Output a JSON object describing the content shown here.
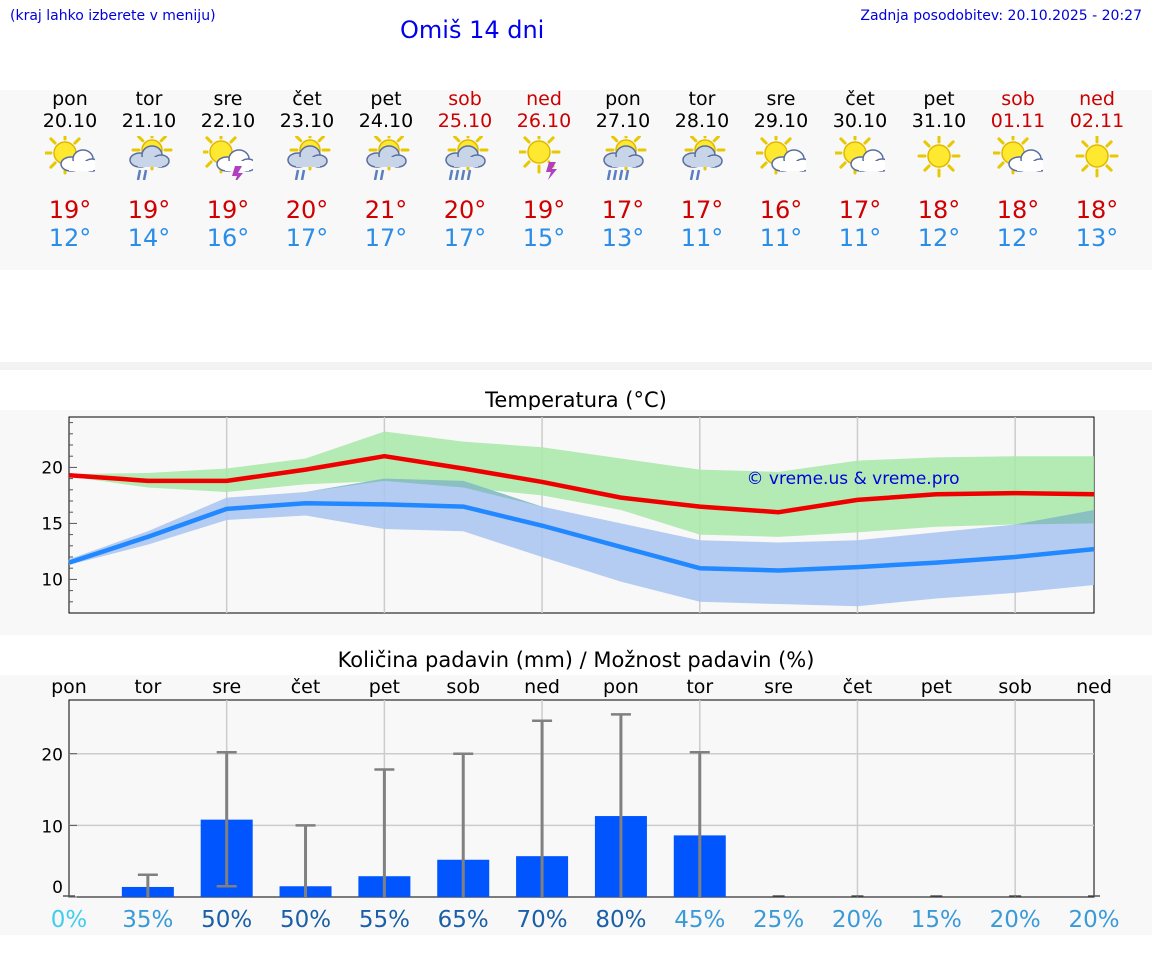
{
  "header": {
    "note": "(kraj lahko izberete v meniju)",
    "title": "Omiš 14 dni",
    "updated": "Zadnja posodobitev: 20.10.2025 - 20:27"
  },
  "days": [
    {
      "name": "pon",
      "date": "20.10",
      "icon": "partly-cloudy-icon",
      "max": "19°",
      "min": "12°",
      "weekend": false
    },
    {
      "name": "tor",
      "date": "21.10",
      "icon": "rain-icon",
      "max": "19°",
      "min": "14°",
      "weekend": false
    },
    {
      "name": "sre",
      "date": "22.10",
      "icon": "thunderstorm-icon",
      "max": "19°",
      "min": "16°",
      "weekend": false
    },
    {
      "name": "čet",
      "date": "23.10",
      "icon": "rain-icon",
      "max": "20°",
      "min": "17°",
      "weekend": false
    },
    {
      "name": "pet",
      "date": "24.10",
      "icon": "rain-icon",
      "max": "21°",
      "min": "17°",
      "weekend": false
    },
    {
      "name": "sob",
      "date": "25.10",
      "icon": "heavy-rain-icon",
      "max": "20°",
      "min": "17°",
      "weekend": true
    },
    {
      "name": "ned",
      "date": "26.10",
      "icon": "sun-thunder-icon",
      "max": "19°",
      "min": "15°",
      "weekend": true
    },
    {
      "name": "pon",
      "date": "27.10",
      "icon": "heavy-rain-icon",
      "max": "17°",
      "min": "13°",
      "weekend": false
    },
    {
      "name": "tor",
      "date": "28.10",
      "icon": "rain-icon",
      "max": "17°",
      "min": "11°",
      "weekend": false
    },
    {
      "name": "sre",
      "date": "29.10",
      "icon": "partly-cloudy-icon",
      "max": "16°",
      "min": "11°",
      "weekend": false
    },
    {
      "name": "čet",
      "date": "30.10",
      "icon": "partly-cloudy-icon",
      "max": "17°",
      "min": "11°",
      "weekend": false
    },
    {
      "name": "pet",
      "date": "31.10",
      "icon": "sunny-icon",
      "max": "18°",
      "min": "12°",
      "weekend": false
    },
    {
      "name": "sob",
      "date": "01.11",
      "icon": "partly-cloudy-icon",
      "max": "18°",
      "min": "12°",
      "weekend": true
    },
    {
      "name": "ned",
      "date": "02.11",
      "icon": "sunny-icon",
      "max": "18°",
      "min": "13°",
      "weekend": true
    }
  ],
  "chart_data": [
    {
      "type": "line",
      "title": "Temperatura (°C)",
      "watermark": "© vreme.us & vreme.pro",
      "x": [
        0,
        1,
        2,
        3,
        4,
        5,
        6,
        7,
        8,
        9,
        10,
        11,
        12,
        13
      ],
      "ylim": [
        7,
        24.5
      ],
      "yticks": [
        10,
        15,
        20
      ],
      "series": [
        {
          "name": "max",
          "color": "#ee0000",
          "values": [
            19.3,
            18.8,
            18.8,
            19.8,
            21.0,
            19.9,
            18.7,
            17.3,
            16.5,
            16.0,
            17.1,
            17.6,
            17.7,
            17.6
          ]
        },
        {
          "name": "min",
          "color": "#2288ff",
          "values": [
            11.5,
            13.8,
            16.3,
            16.8,
            16.7,
            16.5,
            14.8,
            12.9,
            11.0,
            10.8,
            11.1,
            11.5,
            12.0,
            12.7
          ]
        }
      ],
      "bands": [
        {
          "name": "max-range",
          "color": "#a8e8a8",
          "upper": [
            19.4,
            19.5,
            19.9,
            20.8,
            23.2,
            22.3,
            21.8,
            20.8,
            19.8,
            19.6,
            20.6,
            20.9,
            21.0,
            21.0
          ],
          "lower": [
            19.2,
            18.2,
            17.8,
            18.5,
            18.8,
            18.2,
            17.5,
            16.2,
            14.0,
            13.8,
            14.2,
            14.7,
            14.9,
            15.0
          ]
        },
        {
          "name": "min-range",
          "color": "#a8c4f0",
          "upper": [
            11.8,
            14.3,
            17.3,
            17.8,
            19.0,
            18.8,
            16.5,
            15.0,
            13.5,
            13.3,
            13.5,
            14.2,
            14.9,
            16.2
          ],
          "lower": [
            11.3,
            13.1,
            15.3,
            15.7,
            14.5,
            14.3,
            12.0,
            9.8,
            8.0,
            7.8,
            7.6,
            8.3,
            8.8,
            9.5
          ]
        }
      ]
    },
    {
      "type": "bar",
      "title": "Količina padavin (mm) / Možnost padavin (%)",
      "categories": [
        "pon",
        "tor",
        "sre",
        "čet",
        "pet",
        "sob",
        "ned",
        "pon",
        "tor",
        "sre",
        "čet",
        "pet",
        "sob",
        "ned"
      ],
      "ylim": [
        0,
        27.5
      ],
      "yticks": [
        0,
        10,
        20
      ],
      "values": [
        0,
        1.4,
        10.8,
        1.5,
        2.9,
        5.2,
        5.7,
        11.3,
        8.6,
        0,
        0,
        0,
        0,
        0
      ],
      "error_low": [
        0,
        0,
        1.5,
        0,
        0,
        0,
        0,
        0,
        0,
        0,
        0,
        0,
        0,
        0
      ],
      "error_high": [
        0,
        3.1,
        20.2,
        10.0,
        17.8,
        20.0,
        24.6,
        25.5,
        20.2,
        0,
        0,
        0,
        0,
        0
      ],
      "probabilities": [
        "0%",
        "35%",
        "50%",
        "50%",
        "55%",
        "65%",
        "70%",
        "80%",
        "45%",
        "25%",
        "20%",
        "15%",
        "20%",
        "20%"
      ],
      "bar_color": "#0055ff",
      "error_color": "#808080"
    }
  ]
}
